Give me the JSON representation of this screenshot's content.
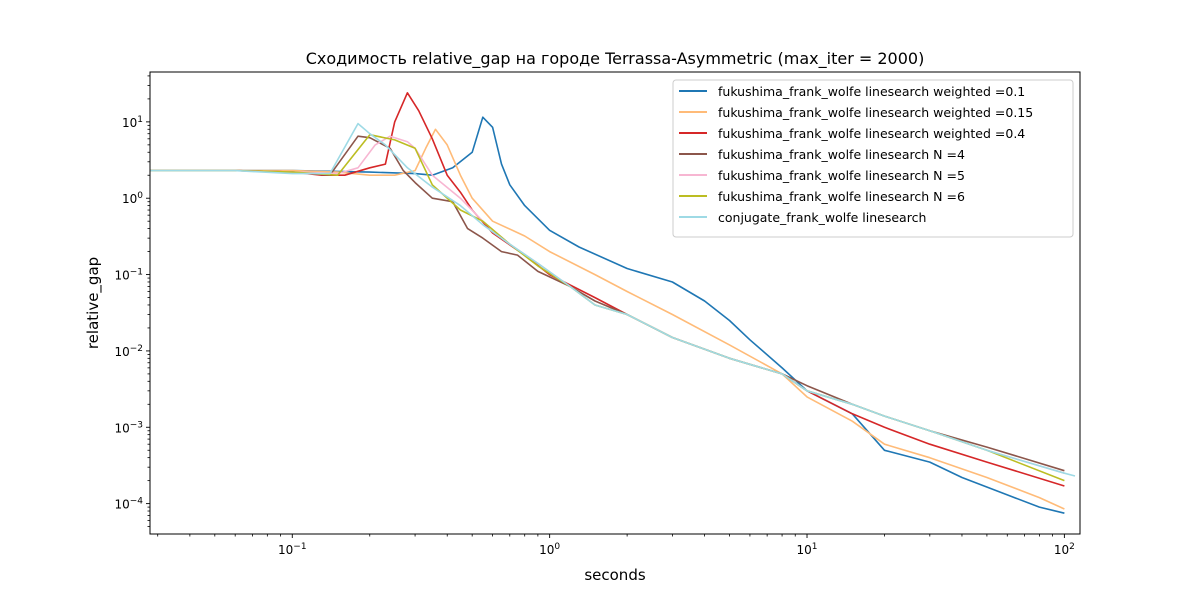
{
  "chart_data": {
    "type": "line",
    "title": "Сходимость relative_gap на городе Terrassa-Asymmetric  (max_iter = 2000)",
    "xlabel": "seconds",
    "ylabel": "relative_gap",
    "xscale": "log",
    "yscale": "log",
    "xlim": [
      0.028,
      115
    ],
    "ylim": [
      4e-05,
      45
    ],
    "grid": false,
    "legend_position": "top-right",
    "x_ticks": [
      {
        "value": 0.1,
        "base": "10",
        "exp": "−1"
      },
      {
        "value": 1,
        "base": "10",
        "exp": "0"
      },
      {
        "value": 10,
        "base": "10",
        "exp": "1"
      },
      {
        "value": 100,
        "base": "10",
        "exp": "2"
      }
    ],
    "y_ticks": [
      {
        "value": 0.0001,
        "base": "10",
        "exp": "−4"
      },
      {
        "value": 0.001,
        "base": "10",
        "exp": "−3"
      },
      {
        "value": 0.01,
        "base": "10",
        "exp": "−2"
      },
      {
        "value": 0.1,
        "base": "10",
        "exp": "−1"
      },
      {
        "value": 1,
        "base": "10",
        "exp": "0"
      },
      {
        "value": 10,
        "base": "10",
        "exp": "1"
      }
    ],
    "series": [
      {
        "name": "fukushima_frank_wolfe linesearch weighted =0.1",
        "color": "#1f77b4",
        "x": [
          0.028,
          0.04,
          0.06,
          0.1,
          0.2,
          0.3,
          0.35,
          0.42,
          0.5,
          0.55,
          0.6,
          0.65,
          0.7,
          0.8,
          1.0,
          1.3,
          2.0,
          3.0,
          4.0,
          5.0,
          6.0,
          8.0,
          10.0,
          15.0,
          20.0,
          30.0,
          40.0,
          60.0,
          80.0,
          100.0
        ],
        "y": [
          2.3,
          2.3,
          2.3,
          2.3,
          2.2,
          2.1,
          2.0,
          2.5,
          4.0,
          11.5,
          8.5,
          2.8,
          1.5,
          0.8,
          0.38,
          0.23,
          0.12,
          0.08,
          0.045,
          0.025,
          0.014,
          0.006,
          0.003,
          0.0015,
          0.0005,
          0.00035,
          0.00022,
          0.00013,
          9e-05,
          7.5e-05
        ]
      },
      {
        "name": "fukushima_frank_wolfe linesearch weighted =0.15",
        "color": "#ffbb78",
        "x": [
          0.028,
          0.06,
          0.1,
          0.15,
          0.2,
          0.25,
          0.3,
          0.33,
          0.36,
          0.4,
          0.45,
          0.5,
          0.6,
          0.8,
          1.0,
          1.5,
          2.0,
          3.0,
          5.0,
          8.0,
          10.0,
          15.0,
          20.0,
          30.0,
          50.0,
          80.0,
          100.0
        ],
        "y": [
          2.3,
          2.3,
          2.3,
          2.2,
          2.0,
          2.0,
          2.3,
          4.5,
          8.0,
          5.0,
          2.0,
          1.0,
          0.5,
          0.32,
          0.2,
          0.1,
          0.06,
          0.03,
          0.012,
          0.005,
          0.0025,
          0.0012,
          0.0006,
          0.0004,
          0.00022,
          0.00012,
          8.5e-05
        ]
      },
      {
        "name": "fukushima_frank_wolfe linesearch weighted =0.4",
        "color": "#d62728",
        "x": [
          0.028,
          0.06,
          0.1,
          0.13,
          0.16,
          0.2,
          0.23,
          0.25,
          0.28,
          0.31,
          0.35,
          0.4,
          0.45,
          0.5,
          0.6,
          0.8,
          1.0,
          1.5,
          2.0,
          3.0,
          5.0,
          8.0,
          10.0,
          15.0,
          20.0,
          30.0,
          50.0,
          100.0
        ],
        "y": [
          2.3,
          2.3,
          2.2,
          2.0,
          2.0,
          2.5,
          2.8,
          10.0,
          24.0,
          14.0,
          6.0,
          2.0,
          1.2,
          0.7,
          0.35,
          0.18,
          0.1,
          0.05,
          0.03,
          0.015,
          0.008,
          0.005,
          0.003,
          0.0015,
          0.001,
          0.0006,
          0.00035,
          0.00017
        ]
      },
      {
        "name": "fukushima_frank_wolfe linesearch N =4",
        "color": "#8c564b",
        "x": [
          0.028,
          0.06,
          0.1,
          0.14,
          0.18,
          0.2,
          0.24,
          0.27,
          0.3,
          0.35,
          0.42,
          0.48,
          0.55,
          0.65,
          0.75,
          0.9,
          1.2,
          1.5,
          2.0,
          3.0,
          5.0,
          8.0,
          10.0,
          15.0,
          20.0,
          30.0,
          50.0,
          100.0
        ],
        "y": [
          2.3,
          2.3,
          2.2,
          2.0,
          6.5,
          6.2,
          4.5,
          2.3,
          1.6,
          1.0,
          0.9,
          0.4,
          0.3,
          0.2,
          0.18,
          0.11,
          0.07,
          0.045,
          0.03,
          0.015,
          0.008,
          0.005,
          0.0035,
          0.002,
          0.0014,
          0.0009,
          0.00055,
          0.00027
        ]
      },
      {
        "name": "fukushima_frank_wolfe linesearch N =5",
        "color": "#f7b6d2",
        "x": [
          0.028,
          0.06,
          0.1,
          0.15,
          0.18,
          0.21,
          0.24,
          0.28,
          0.3,
          0.35,
          0.45,
          0.55,
          0.7,
          0.9,
          1.2,
          1.5,
          2.0,
          3.0,
          5.0,
          8.0,
          10.0,
          15.0,
          20.0,
          30.0,
          50.0,
          100.0
        ],
        "y": [
          2.3,
          2.3,
          2.2,
          2.1,
          2.5,
          5.0,
          6.5,
          5.5,
          4.5,
          2.0,
          1.0,
          0.5,
          0.25,
          0.14,
          0.07,
          0.04,
          0.03,
          0.015,
          0.008,
          0.005,
          0.003,
          0.002,
          0.0014,
          0.0009,
          0.0005,
          0.00025
        ]
      },
      {
        "name": "fukushima_frank_wolfe linesearch N =6",
        "color": "#bcbd22",
        "x": [
          0.028,
          0.06,
          0.1,
          0.15,
          0.2,
          0.25,
          0.3,
          0.35,
          0.45,
          0.55,
          0.7,
          0.9,
          1.2,
          1.5,
          2.0,
          3.0,
          5.0,
          8.0,
          10.0,
          15.0,
          20.0,
          30.0,
          50.0,
          100.0
        ],
        "y": [
          2.3,
          2.3,
          2.2,
          2.0,
          6.8,
          5.8,
          4.5,
          1.5,
          0.7,
          0.5,
          0.25,
          0.13,
          0.07,
          0.04,
          0.03,
          0.015,
          0.008,
          0.005,
          0.003,
          0.002,
          0.0014,
          0.0009,
          0.0005,
          0.0002
        ]
      },
      {
        "name": "conjugate_frank_wolfe linesearch",
        "color": "#9edae5",
        "x": [
          0.028,
          0.06,
          0.1,
          0.14,
          0.18,
          0.2,
          0.23,
          0.28,
          0.35,
          0.45,
          0.55,
          0.7,
          0.9,
          1.2,
          1.5,
          2.0,
          3.0,
          5.0,
          8.0,
          10.0,
          15.0,
          20.0,
          30.0,
          50.0,
          100.0,
          110.0
        ],
        "y": [
          2.3,
          2.3,
          2.1,
          2.1,
          9.5,
          7.0,
          5.0,
          2.5,
          1.4,
          0.8,
          0.45,
          0.25,
          0.14,
          0.07,
          0.04,
          0.03,
          0.015,
          0.008,
          0.005,
          0.003,
          0.002,
          0.0014,
          0.0009,
          0.0005,
          0.00025,
          0.00023
        ]
      }
    ]
  }
}
